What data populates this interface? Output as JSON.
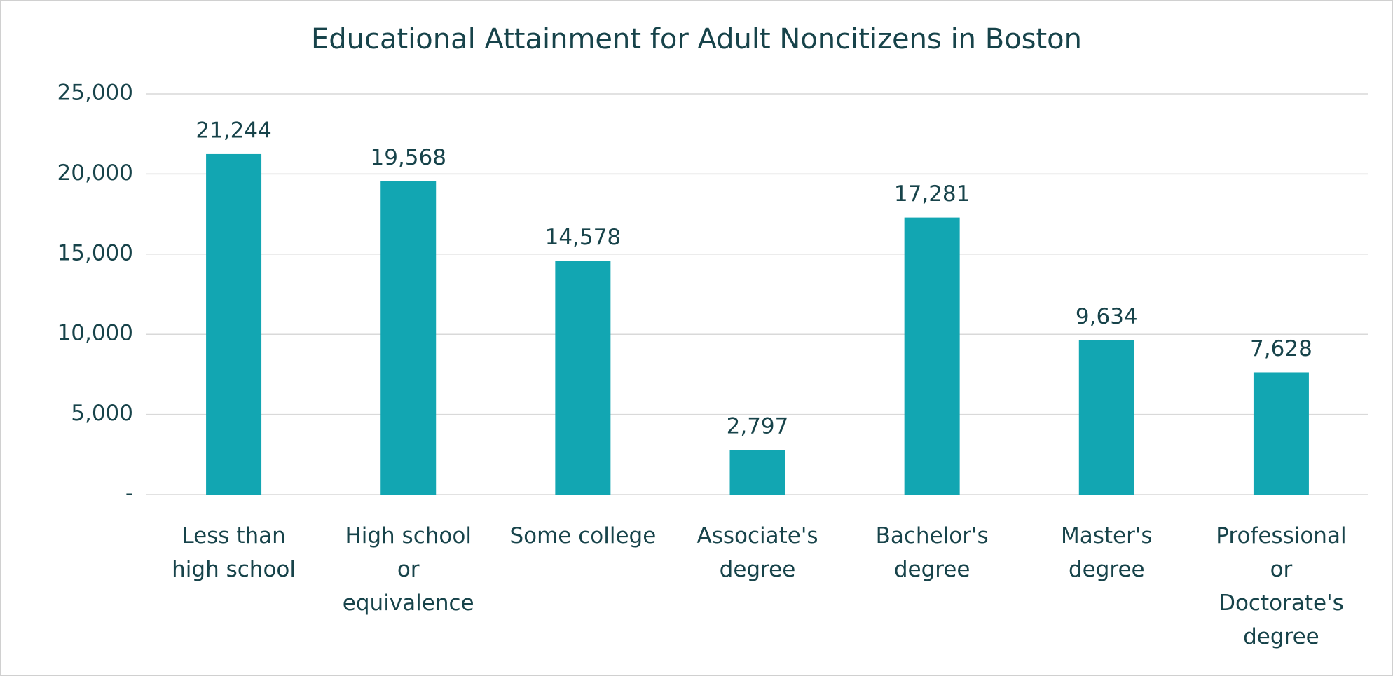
{
  "chart_data": {
    "type": "bar",
    "title": "Educational Attainment for Adult Noncitizens in Boston",
    "categories": [
      "Less than\nhigh school",
      "High school\nor\nequivalence",
      "Some college",
      "Associate's\ndegree",
      "Bachelor's\ndegree",
      "Master's\ndegree",
      "Professional\nor\nDoctorate's\ndegree"
    ],
    "values": [
      21244,
      19568,
      14578,
      2797,
      17281,
      9634,
      7628
    ],
    "value_labels": [
      "21,244",
      "19,568",
      "14,578",
      "2,797",
      "17,281",
      "9,634",
      "7,628"
    ],
    "color": "#12a6b2",
    "ylim": [
      0,
      25000
    ],
    "yticks": [
      {
        "value": 0,
        "label": "-"
      },
      {
        "value": 5000,
        "label": "5,000"
      },
      {
        "value": 10000,
        "label": "10,000"
      },
      {
        "value": 15000,
        "label": "15,000"
      },
      {
        "value": 20000,
        "label": "20,000"
      },
      {
        "value": 25000,
        "label": "25,000"
      }
    ],
    "grid": true
  }
}
